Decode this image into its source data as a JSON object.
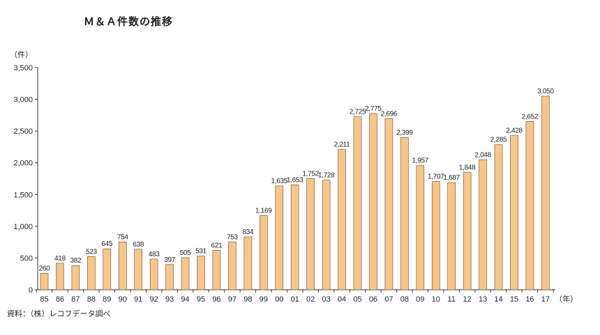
{
  "title": "Ｍ＆Ａ件数の推移",
  "y_unit_label": "（件）",
  "x_unit_label": "（年）",
  "source_note": "資料：（株）レコフデータ調べ",
  "colors": {
    "bar_fill": "#f7c68b",
    "bar_stroke": "#6b4a2a",
    "axis": "#333333"
  },
  "chart_data": {
    "type": "bar",
    "title": "Ｍ＆Ａ件数の推移",
    "xlabel": "（年）",
    "ylabel": "（件）",
    "ylim": [
      0,
      3500
    ],
    "yticks": [
      0,
      500,
      1000,
      1500,
      2000,
      2500,
      3000,
      3500
    ],
    "ytick_labels": [
      "0",
      "500",
      "1,000",
      "1,500",
      "2,000",
      "2,500",
      "3,000",
      "3,500"
    ],
    "categories": [
      "85",
      "86",
      "87",
      "88",
      "89",
      "90",
      "91",
      "92",
      "93",
      "94",
      "95",
      "96",
      "97",
      "98",
      "99",
      "00",
      "01",
      "02",
      "03",
      "04",
      "05",
      "06",
      "07",
      "08",
      "09",
      "10",
      "11",
      "12",
      "13",
      "14",
      "15",
      "16",
      "17"
    ],
    "values": [
      260,
      418,
      382,
      523,
      645,
      754,
      638,
      483,
      397,
      505,
      531,
      621,
      753,
      834,
      1169,
      1635,
      1653,
      1752,
      1728,
      2211,
      2725,
      2775,
      2696,
      2399,
      1957,
      1707,
      1687,
      1848,
      2048,
      2285,
      2428,
      2652,
      3050
    ],
    "value_labels": [
      "260",
      "418",
      "382",
      "523",
      "645",
      "754",
      "638",
      "483",
      "397",
      "505",
      "531",
      "621",
      "753",
      "834",
      "1,169",
      "1,635",
      "1,653",
      "1,752",
      "1,728",
      "2,211",
      "2,725",
      "2,775",
      "2,696",
      "2,399",
      "1,957",
      "1,707",
      "1,687",
      "1,848",
      "2,048",
      "2,285",
      "2,428",
      "2,652",
      "3,050"
    ],
    "grid": false,
    "legend": "none"
  }
}
